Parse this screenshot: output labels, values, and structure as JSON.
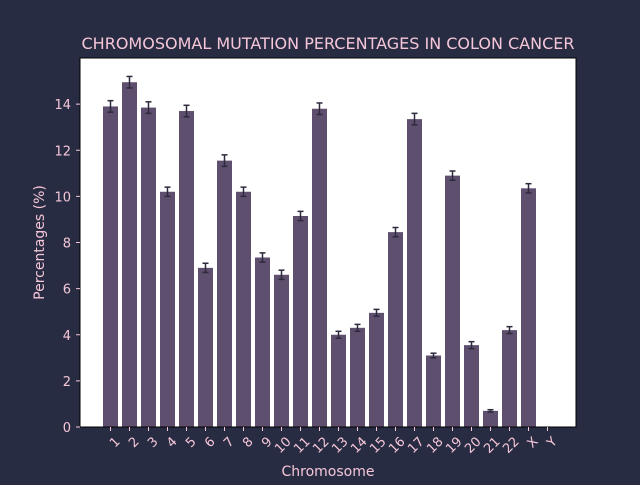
{
  "chart_data": {
    "type": "bar",
    "title": "CHROMOSOMAL MUTATION PERCENTAGES IN COLON CANCER",
    "xlabel": "Chromosome",
    "ylabel": "Percentages (%)",
    "categories": [
      "1",
      "2",
      "3",
      "4",
      "5",
      "6",
      "7",
      "8",
      "9",
      "10",
      "11",
      "12",
      "13",
      "14",
      "15",
      "16",
      "17",
      "18",
      "19",
      "20",
      "21",
      "22",
      "X",
      "Y"
    ],
    "values": [
      13.9,
      14.95,
      13.85,
      10.2,
      13.7,
      6.9,
      11.55,
      10.2,
      7.35,
      6.6,
      9.15,
      13.8,
      4.0,
      4.3,
      4.95,
      8.45,
      13.35,
      3.1,
      10.9,
      3.55,
      0.7,
      4.2,
      10.35,
      0.0
    ],
    "errors": [
      0.25,
      0.25,
      0.25,
      0.2,
      0.25,
      0.2,
      0.25,
      0.2,
      0.2,
      0.2,
      0.2,
      0.25,
      0.15,
      0.15,
      0.15,
      0.2,
      0.25,
      0.1,
      0.2,
      0.15,
      0.05,
      0.15,
      0.2,
      0.0
    ],
    "yticks": [
      0,
      2,
      4,
      6,
      8,
      10,
      12,
      14
    ],
    "ylim": [
      0,
      16
    ],
    "grid": false,
    "legend": false,
    "colors": {
      "background": "#272c42",
      "plot_area": "#ffffff",
      "bar": "#5f4f6e",
      "error_bar": "#2d2a3d",
      "text": "#f5c6d8",
      "axis": "#000000"
    }
  }
}
